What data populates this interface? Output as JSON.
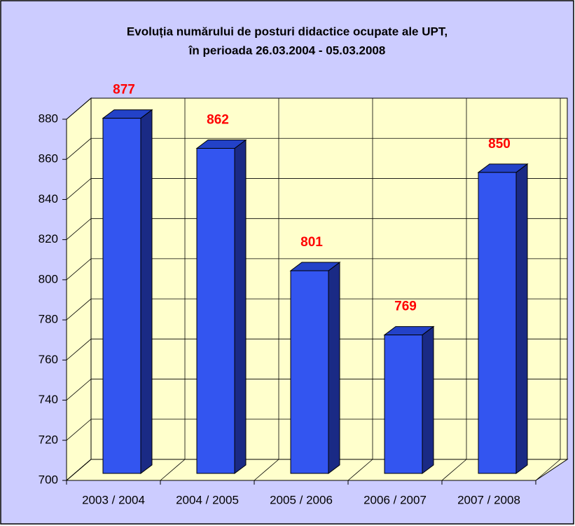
{
  "chart_data": {
    "type": "bar3d",
    "title": [
      "Evoluția numărului de posturi didactice ocupate ale UPT,",
      "în perioada 26.03.2004 - 05.03.2008"
    ],
    "categories": [
      "2003 / 2004",
      "2004 / 2005",
      "2005 / 2006",
      "2006 / 2007",
      "2007 / 2008"
    ],
    "values": [
      877,
      862,
      801,
      769,
      850
    ],
    "color": "#3355f0",
    "ylim": [
      700,
      880
    ],
    "yticks": [
      700,
      720,
      740,
      760,
      780,
      800,
      820,
      840,
      860,
      880
    ],
    "grid": true
  }
}
